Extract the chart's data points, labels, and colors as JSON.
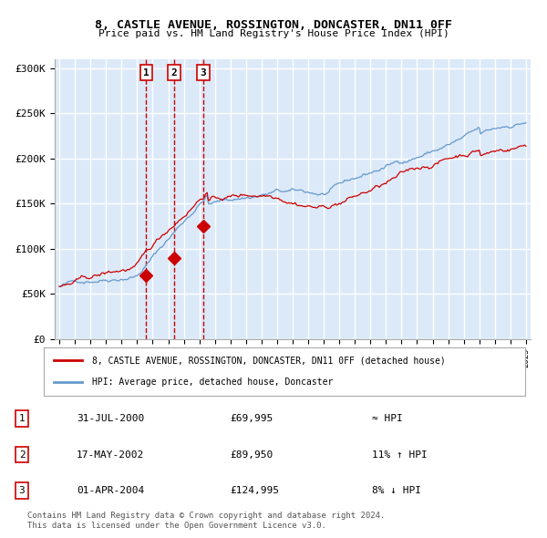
{
  "title": "8, CASTLE AVENUE, ROSSINGTON, DONCASTER, DN11 0FF",
  "subtitle": "Price paid vs. HM Land Registry's House Price Index (HPI)",
  "ylabel_ticks": [
    "£0",
    "£50K",
    "£100K",
    "£150K",
    "£200K",
    "£250K",
    "£300K"
  ],
  "ytick_values": [
    0,
    50000,
    100000,
    150000,
    200000,
    250000,
    300000
  ],
  "ylim": [
    0,
    310000
  ],
  "sale_dates_str": [
    "31-JUL-2000",
    "17-MAY-2002",
    "01-APR-2004"
  ],
  "sale_prices": [
    69995,
    89950,
    124995
  ],
  "sale_years": [
    2000.58,
    2002.37,
    2004.25
  ],
  "legend_property": "8, CASTLE AVENUE, ROSSINGTON, DONCASTER, DN11 0FF (detached house)",
  "legend_hpi": "HPI: Average price, detached house, Doncaster",
  "table_rows": [
    {
      "num": "1",
      "date": "31-JUL-2000",
      "price": "£69,995",
      "vs": "≈ HPI"
    },
    {
      "num": "2",
      "date": "17-MAY-2002",
      "price": "£89,950",
      "vs": "11% ↑ HPI"
    },
    {
      "num": "3",
      "date": "01-APR-2004",
      "price": "£124,995",
      "vs": "8% ↓ HPI"
    }
  ],
  "footnote1": "Contains HM Land Registry data © Crown copyright and database right 2024.",
  "footnote2": "This data is licensed under the Open Government Licence v3.0.",
  "bg_color": "#dce9f8",
  "plot_bg_color": "#dce9f8",
  "line_color_red": "#cc0000",
  "line_color_blue": "#6699cc",
  "grid_color": "#ffffff",
  "vline_color": "#cc0000",
  "x_start_year": 1995,
  "x_end_year": 2025
}
